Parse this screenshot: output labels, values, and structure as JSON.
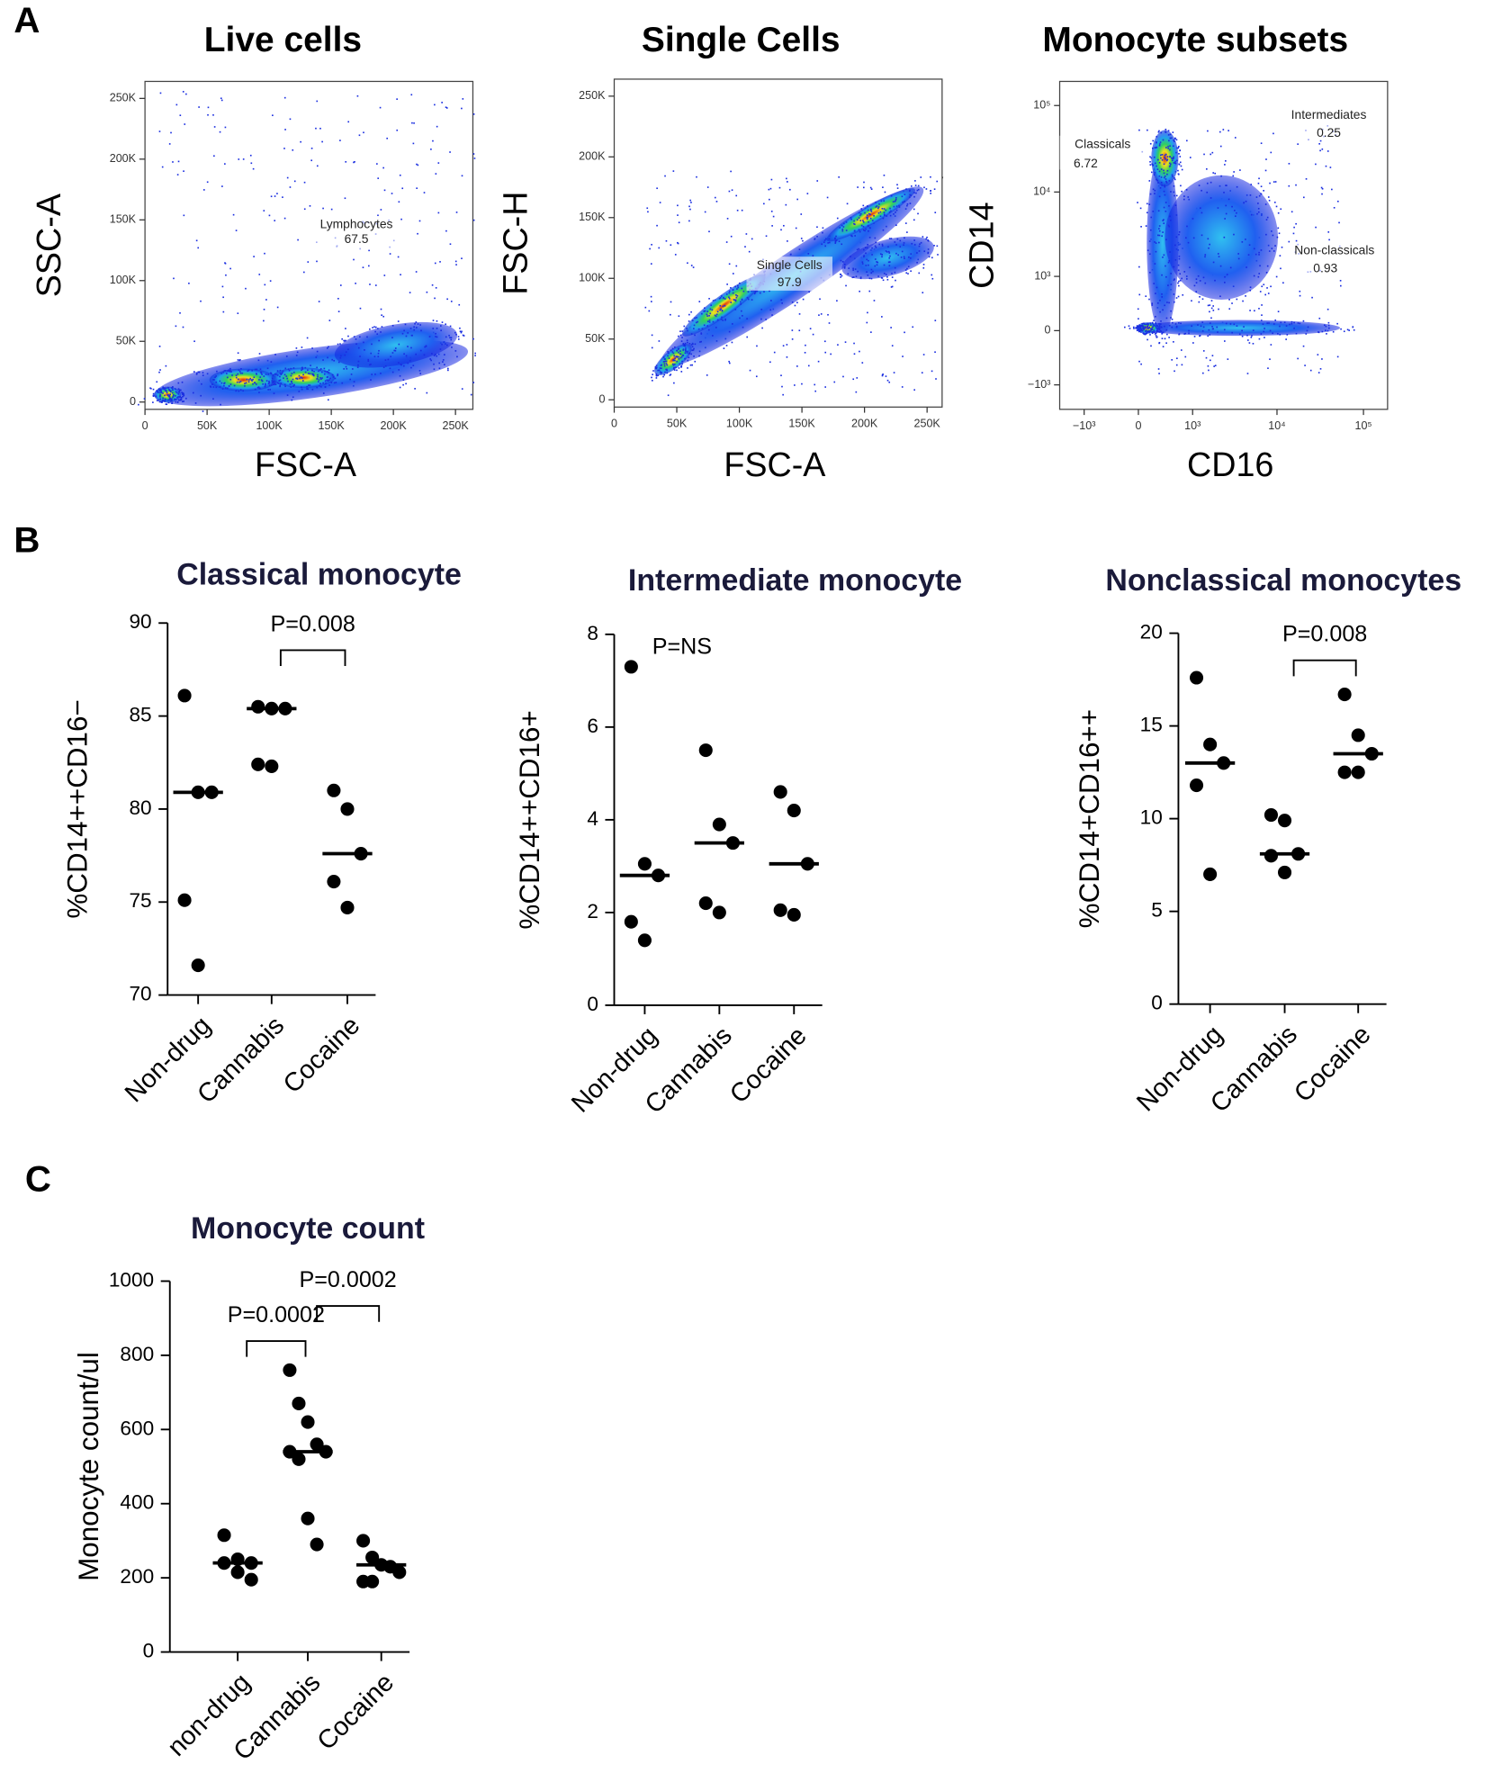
{
  "panel_labels": [
    "A",
    "B",
    "C"
  ],
  "chart_data": [
    {
      "type": "density",
      "title": "Live cells",
      "x_label": "FSC-A",
      "y_label": "SSC-A",
      "scale": "linear",
      "xlim": [
        0,
        264000
      ],
      "ylim": [
        -6000,
        264000
      ],
      "xticks": [
        0,
        {
          "value": 50000,
          "label": "50K"
        },
        {
          "value": 100000,
          "label": "100K"
        },
        {
          "value": 150000,
          "label": "150K"
        },
        {
          "value": 200000,
          "label": "200K"
        },
        {
          "value": 250000,
          "label": "250K"
        }
      ],
      "yticks": [
        0,
        {
          "value": 50000,
          "label": "50K"
        },
        {
          "value": 100000,
          "label": "100K"
        },
        {
          "value": 150000,
          "label": "150K"
        },
        {
          "value": 200000,
          "label": "200K"
        },
        {
          "value": 250000,
          "label": "250K"
        }
      ],
      "gates": [
        {
          "name": "Lymphocytes",
          "value": 67.5
        }
      ]
    },
    {
      "type": "density",
      "title": "Single Cells",
      "x_label": "FSC-A",
      "y_label": "FSC-H",
      "scale": "linear",
      "xlim": [
        0,
        262000
      ],
      "ylim": [
        -6000,
        264000
      ],
      "xticks": [
        0,
        {
          "value": 50000,
          "label": "50K"
        },
        {
          "value": 100000,
          "label": "100K"
        },
        {
          "value": 150000,
          "label": "150K"
        },
        {
          "value": 200000,
          "label": "200K"
        },
        {
          "value": 250000,
          "label": "250K"
        }
      ],
      "yticks": [
        0,
        {
          "value": 50000,
          "label": "50K"
        },
        {
          "value": 100000,
          "label": "100K"
        },
        {
          "value": 150000,
          "label": "150K"
        },
        {
          "value": 200000,
          "label": "200K"
        },
        {
          "value": 250000,
          "label": "250K"
        }
      ],
      "gates": [
        {
          "name": "Single Cells",
          "value": 97.9
        }
      ]
    },
    {
      "type": "density",
      "title": "Monocyte subsets",
      "x_label": "CD16",
      "y_label": "CD14",
      "scale": "biex",
      "xlim": [
        -2000,
        190000
      ],
      "ylim": [
        -2000,
        190000
      ],
      "xticks": [
        {
          "value": -1000,
          "label": "−10³"
        },
        0,
        {
          "value": 1000,
          "label": "10³"
        },
        {
          "value": 10000,
          "label": "10⁴"
        },
        {
          "value": 100000,
          "label": "10⁵"
        }
      ],
      "yticks": [
        {
          "value": -1000,
          "label": "−10³"
        },
        0,
        {
          "value": 1000,
          "label": "10³"
        },
        {
          "value": 10000,
          "label": "10⁴"
        },
        {
          "value": 100000,
          "label": "10⁵"
        }
      ],
      "gates": [
        {
          "name": "Classicals",
          "value": 6.72
        },
        {
          "name": "Intermediates",
          "value": 0.25
        },
        {
          "name": "Non-classicals",
          "value": 0.93
        }
      ]
    },
    {
      "type": "dot",
      "title": "Classical monocyte",
      "y_label": "%CD14++CD16−",
      "categories": [
        "Non-drug",
        "Cannabis",
        "Cocaine"
      ],
      "values": [
        [
          86.1,
          80.9,
          80.9,
          75.1,
          71.6
        ],
        [
          85.5,
          85.4,
          85.4,
          82.4,
          82.3
        ],
        [
          81.0,
          80.0,
          77.6,
          76.1,
          74.7
        ]
      ],
      "medians": [
        80.9,
        85.4,
        77.6
      ],
      "ylim": [
        70,
        90
      ],
      "yticks": [
        70,
        75,
        80,
        85,
        90
      ],
      "comparisons": [
        {
          "label": "P=0.008",
          "between": [
            "Cannabis",
            "Cocaine"
          ]
        }
      ]
    },
    {
      "type": "dot",
      "title": "Intermediate monocyte",
      "y_label": "%CD14++CD16+",
      "categories": [
        "Non-drug",
        "Cannabis",
        "Cocaine"
      ],
      "values": [
        [
          7.3,
          3.05,
          2.8,
          1.8,
          1.4
        ],
        [
          5.5,
          3.9,
          3.5,
          2.2,
          2.0
        ],
        [
          4.6,
          4.2,
          3.05,
          2.05,
          1.95
        ]
      ],
      "medians": [
        2.8,
        3.5,
        3.05
      ],
      "ylim": [
        0,
        8
      ],
      "yticks": [
        0,
        2,
        4,
        6,
        8
      ],
      "comparisons": [
        {
          "label": "P=NS"
        }
      ]
    },
    {
      "type": "dot",
      "title": "Nonclassical  monocytes",
      "y_label": "%CD14+CD16++",
      "categories": [
        "Non-drug",
        "Cannabis",
        "Cocaine"
      ],
      "values": [
        [
          17.6,
          14.0,
          13.0,
          11.8,
          7.0
        ],
        [
          10.2,
          9.9,
          8.1,
          8.0,
          7.1
        ],
        [
          16.7,
          14.5,
          13.5,
          12.5,
          12.5
        ]
      ],
      "medians": [
        13.0,
        8.1,
        13.5
      ],
      "ylim": [
        0,
        20
      ],
      "yticks": [
        0,
        5,
        10,
        15,
        20
      ],
      "comparisons": [
        {
          "label": "P=0.008",
          "between": [
            "Cannabis",
            "Cocaine"
          ]
        }
      ]
    },
    {
      "type": "dot",
      "title": "Monocyte count",
      "y_label": "Monocyte count/ul",
      "categories": [
        "non-drug",
        "Cannabis",
        "Cocaine"
      ],
      "values": [
        [
          315,
          250,
          240,
          240,
          215,
          195
        ],
        [
          760,
          670,
          620,
          560,
          540,
          540,
          520,
          360,
          290
        ],
        [
          300,
          255,
          235,
          230,
          215,
          190,
          190
        ]
      ],
      "medians": [
        240,
        540,
        235
      ],
      "ylim": [
        0,
        1000
      ],
      "yticks": [
        0,
        200,
        400,
        600,
        800,
        1000
      ],
      "comparisons": [
        {
          "label": "P=0.0002",
          "between": [
            "non-drug",
            "Cannabis"
          ]
        },
        {
          "label": "P=0.0002",
          "between": [
            "Cannabis",
            "Cocaine"
          ]
        }
      ]
    }
  ]
}
